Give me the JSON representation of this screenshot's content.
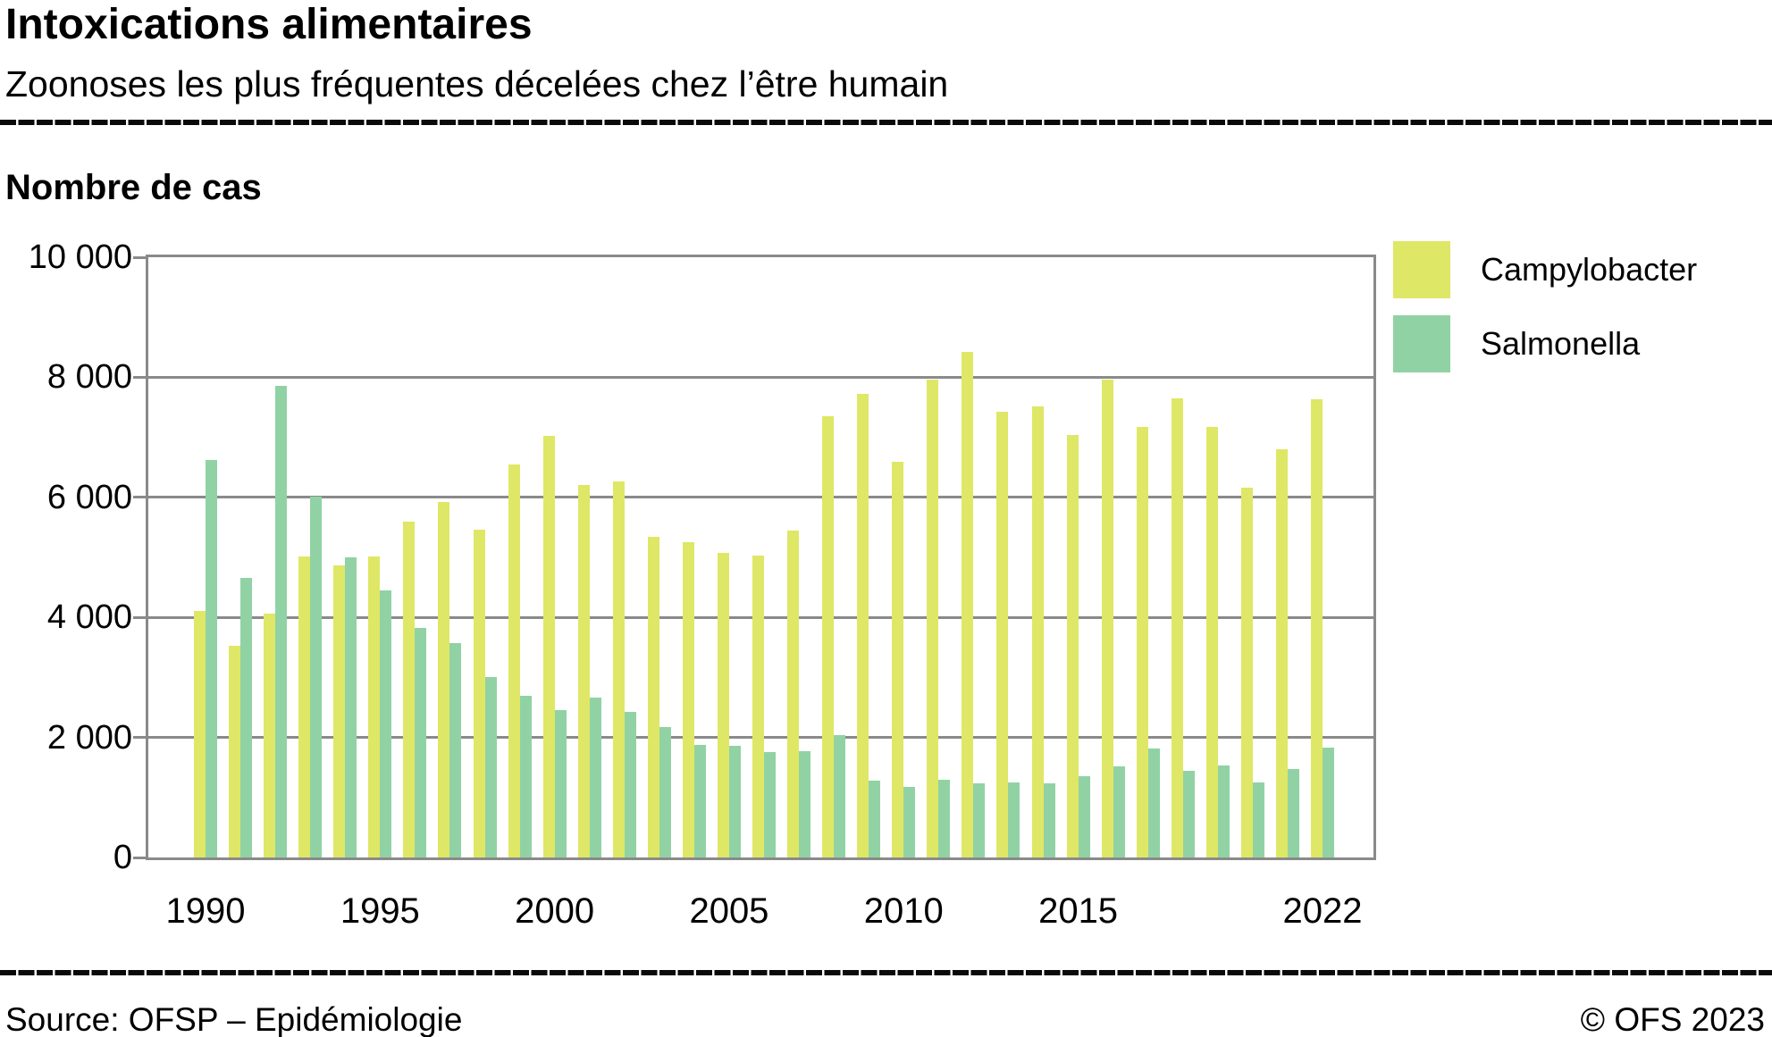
{
  "header": {
    "title": "Intoxications alimentaires",
    "subtitle": "Zoonoses les plus fréquentes décelées chez l’être humain"
  },
  "chart": {
    "axis_title": "Nombre de cas"
  },
  "footer": {
    "source": "Source: OFSP – Epidémiologie",
    "copyright": "© OFS 2023"
  },
  "colors": {
    "campylobacter": "#dfe766",
    "salmonella": "#91d2a5",
    "grid": "#8a8a8a"
  },
  "chart_data": {
    "type": "bar",
    "title": "Nombre de cas",
    "categories": [
      1990,
      1991,
      1992,
      1993,
      1994,
      1995,
      1996,
      1997,
      1998,
      1999,
      2000,
      2001,
      2002,
      2003,
      2004,
      2005,
      2006,
      2007,
      2008,
      2009,
      2010,
      2011,
      2012,
      2013,
      2014,
      2015,
      2016,
      2017,
      2018,
      2019,
      2020,
      2021,
      2022
    ],
    "series": [
      {
        "name": "Campylobacter",
        "color": "#dfe766",
        "values": [
          4100,
          3530,
          4060,
          5010,
          4870,
          5020,
          5600,
          5930,
          5460,
          6550,
          7030,
          6200,
          6270,
          5340,
          5260,
          5070,
          5030,
          5450,
          7350,
          7720,
          6590,
          7960,
          8430,
          7430,
          7510,
          7040,
          7960,
          7180,
          7650,
          7180,
          6160,
          6800,
          7630
        ]
      },
      {
        "name": "Salmonella",
        "color": "#91d2a5",
        "values": [
          6620,
          4660,
          7850,
          6010,
          5000,
          4450,
          3830,
          3570,
          3010,
          2700,
          2450,
          2660,
          2420,
          2180,
          1870,
          1860,
          1760,
          1770,
          2040,
          1280,
          1180,
          1300,
          1230,
          1250,
          1240,
          1350,
          1520,
          1810,
          1440,
          1530,
          1250,
          1480,
          1830
        ]
      }
    ],
    "ylim": [
      0,
      10000
    ],
    "yticks": [
      0,
      2000,
      4000,
      6000,
      8000,
      10000
    ],
    "ytick_labels": [
      "0",
      "2 000",
      "4 000",
      "6 000",
      "8 000",
      "10 000"
    ],
    "xtick_years": [
      1990,
      1995,
      2000,
      2005,
      2010,
      2015,
      2022
    ],
    "grid": true,
    "legend_position": "top-right"
  }
}
